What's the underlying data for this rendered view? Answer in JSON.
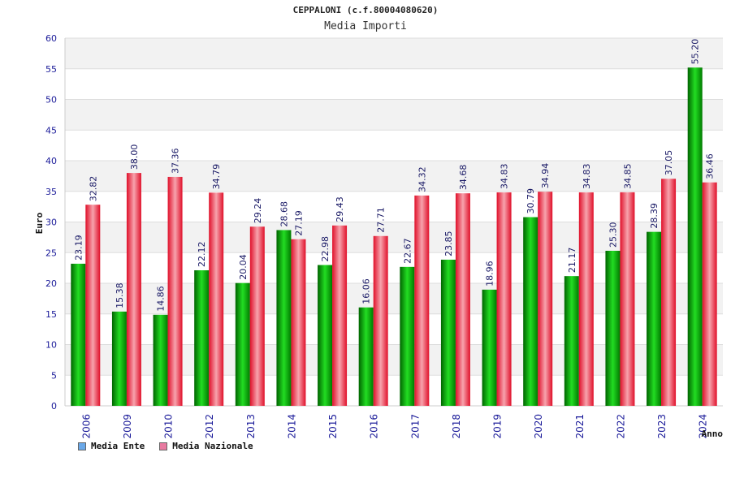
{
  "chart_data": {
    "type": "bar",
    "title": "CEPPALONI (c.f.80004080620)",
    "subtitle": "Media Importi",
    "xlabel": "Anno",
    "ylabel": "Euro",
    "ylim": [
      0,
      60
    ],
    "yticks": [
      0,
      5,
      10,
      15,
      20,
      25,
      30,
      35,
      40,
      45,
      50,
      55,
      60
    ],
    "grid": true,
    "legend_position": "bottom-left",
    "categories": [
      "2006",
      "2009",
      "2010",
      "2012",
      "2013",
      "2014",
      "2015",
      "2016",
      "2017",
      "2018",
      "2019",
      "2020",
      "2021",
      "2022",
      "2023",
      "2024"
    ],
    "series": [
      {
        "name": "Media Ente",
        "color": "#00b000",
        "legend_color": "#6aa8e8",
        "values": [
          23.19,
          15.38,
          14.86,
          22.12,
          20.04,
          28.68,
          22.98,
          16.06,
          22.67,
          23.85,
          18.96,
          30.79,
          21.17,
          25.3,
          28.39,
          55.2
        ],
        "labels": [
          "23.19",
          "15.38",
          "14.86",
          "22.12",
          "20.04",
          "28.68",
          "22.98",
          "16.06",
          "22.67",
          "23.85",
          "18.96",
          "30.79",
          "21.17",
          "25.30",
          "28.39",
          "55.20"
        ]
      },
      {
        "name": "Media Nazionale",
        "color": "#e8203a",
        "legend_color": "#e87aa0",
        "values": [
          32.82,
          38.0,
          37.36,
          34.79,
          29.24,
          27.19,
          29.43,
          27.71,
          34.32,
          34.68,
          34.83,
          34.94,
          34.83,
          34.85,
          37.05,
          36.46
        ],
        "labels": [
          "32.82",
          "38.00",
          "37.36",
          "34.79",
          "29.24",
          "27.19",
          "29.43",
          "27.71",
          "34.32",
          "34.68",
          "34.83",
          "34.94",
          "34.83",
          "34.85",
          "37.05",
          "36.46"
        ]
      }
    ]
  }
}
